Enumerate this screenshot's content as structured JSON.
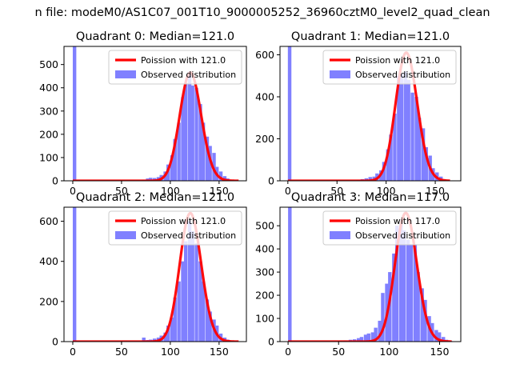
{
  "figure": {
    "suptitle": "n file: modeM0/AS1C07_001T10_9000005252_36960cztM0_level2_quad_clean"
  },
  "colors": {
    "hist_fill": "#8080ff",
    "poisson_line": "#ff0000",
    "axes": "#000000",
    "background": "#ffffff"
  },
  "chart_data": [
    {
      "type": "bar",
      "title": "Quadrant 0: Median=121.0",
      "median": 121.0,
      "xlim": [
        -9,
        178
      ],
      "ylim": [
        0,
        578
      ],
      "xticks": [
        0,
        50,
        100,
        150
      ],
      "yticks": [
        0,
        100,
        200,
        300,
        400,
        500
      ],
      "legend": {
        "placement": "upper right",
        "entries": [
          "Poission with 121.0",
          "Observed distribution"
        ]
      },
      "series": [
        {
          "name": "Observed distribution",
          "kind": "histogram",
          "bin_width": 3.6,
          "bin_start": [
            0,
            71,
            75,
            78,
            82,
            86,
            89,
            93,
            96,
            100,
            103,
            107,
            111,
            114,
            118,
            121,
            125,
            129,
            132,
            136,
            139,
            143,
            146,
            150,
            154,
            157,
            161,
            164
          ],
          "counts": [
            578,
            5,
            10,
            13,
            12,
            16,
            25,
            40,
            70,
            110,
            180,
            250,
            360,
            420,
            470,
            410,
            400,
            330,
            250,
            190,
            150,
            120,
            60,
            40,
            20,
            10,
            3,
            2
          ]
        },
        {
          "name": "Poission with 121.0",
          "kind": "poisson",
          "lambda": 121.0,
          "peak": 465,
          "x_range": [
            0,
            170
          ]
        }
      ]
    },
    {
      "type": "bar",
      "title": "Quadrant 1: Median=121.0",
      "median": 121.0,
      "xlim": [
        -8,
        176
      ],
      "ylim": [
        0,
        640
      ],
      "xticks": [
        0,
        50,
        100,
        150
      ],
      "yticks": [
        0,
        200,
        400,
        600
      ],
      "legend": {
        "placement": "upper right",
        "entries": [
          "Poission with 121.0",
          "Observed distribution"
        ]
      },
      "series": [
        {
          "name": "Observed distribution",
          "kind": "histogram",
          "bin_width": 3.6,
          "bin_start": [
            0,
            70,
            74,
            78,
            82,
            86,
            89,
            93,
            96,
            100,
            103,
            107,
            111,
            114,
            118,
            121,
            125,
            129,
            132,
            136,
            139,
            143,
            146,
            150,
            154,
            157,
            161
          ],
          "counts": [
            640,
            3,
            8,
            12,
            18,
            20,
            35,
            50,
            90,
            150,
            220,
            320,
            500,
            510,
            520,
            480,
            420,
            400,
            300,
            250,
            160,
            120,
            60,
            40,
            20,
            8,
            2
          ]
        },
        {
          "name": "Poission with 121.0",
          "kind": "poisson",
          "lambda": 121.0,
          "peak": 610,
          "x_range": [
            0,
            165
          ]
        }
      ]
    },
    {
      "type": "bar",
      "title": "Quadrant 2: Median=121.0",
      "median": 121.0,
      "xlim": [
        -9,
        178
      ],
      "ylim": [
        0,
        670
      ],
      "xticks": [
        0,
        50,
        100,
        150
      ],
      "yticks": [
        0,
        200,
        400,
        600
      ],
      "legend": {
        "placement": "upper right",
        "entries": [
          "Poission with 121.0",
          "Observed distribution"
        ]
      },
      "series": [
        {
          "name": "Observed distribution",
          "kind": "histogram",
          "bin_width": 3.6,
          "bin_start": [
            0,
            71,
            75,
            78,
            82,
            86,
            89,
            93,
            96,
            100,
            103,
            107,
            111,
            114,
            118,
            121,
            125,
            129,
            132,
            136,
            139,
            143,
            146,
            150,
            154,
            157,
            161,
            164
          ],
          "counts": [
            670,
            20,
            8,
            10,
            15,
            20,
            30,
            45,
            80,
            120,
            220,
            300,
            400,
            500,
            600,
            550,
            490,
            400,
            300,
            210,
            150,
            110,
            80,
            40,
            20,
            10,
            4,
            2
          ]
        },
        {
          "name": "Poission with 121.0",
          "kind": "poisson",
          "lambda": 121.0,
          "peak": 640,
          "x_range": [
            0,
            170
          ]
        }
      ]
    },
    {
      "type": "bar",
      "title": "Quadrant 3: Median=117.0",
      "median": 117.0,
      "xlim": [
        -8,
        171
      ],
      "ylim": [
        0,
        580
      ],
      "xticks": [
        0,
        50,
        100,
        150
      ],
      "yticks": [
        0,
        100,
        200,
        300,
        400,
        500
      ],
      "legend": {
        "placement": "upper right",
        "entries": [
          "Poission with 117.0",
          "Observed distribution"
        ]
      },
      "series": [
        {
          "name": "Observed distribution",
          "kind": "histogram",
          "bin_width": 3.5,
          "bin_start": [
            0,
            50,
            55,
            60,
            64,
            68,
            71,
            75,
            78,
            82,
            85,
            89,
            92,
            96,
            99,
            103,
            106,
            110,
            113,
            117,
            120,
            124,
            127,
            131,
            134,
            138,
            141,
            145,
            148,
            152,
            155,
            159
          ],
          "counts": [
            580,
            3,
            5,
            8,
            10,
            15,
            20,
            30,
            35,
            40,
            60,
            90,
            210,
            250,
            300,
            380,
            500,
            510,
            480,
            440,
            420,
            420,
            300,
            230,
            180,
            110,
            80,
            50,
            40,
            20,
            8,
            3
          ]
        },
        {
          "name": "Poission with 117.0",
          "kind": "poisson",
          "lambda": 117.0,
          "peak": 555,
          "x_range": [
            0,
            162
          ]
        }
      ]
    }
  ]
}
